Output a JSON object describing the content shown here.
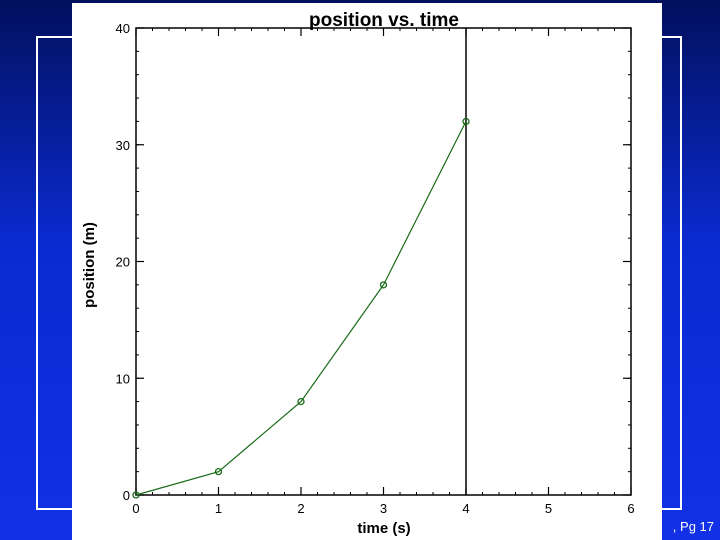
{
  "slide": {
    "background_top": "#02105e",
    "background_bottom": "#1230e6",
    "frame_color": "#ffffff",
    "footer_text": ", Pg 17"
  },
  "chart_data": {
    "type": "line",
    "title": "position vs. time",
    "xlabel": "time (s)",
    "ylabel": "position (m)",
    "xlim": [
      0,
      6
    ],
    "ylim": [
      0,
      40
    ],
    "xticks": [
      0,
      1,
      2,
      3,
      4,
      5,
      6
    ],
    "yticks": [
      0,
      10,
      20,
      30,
      40
    ],
    "grid": false,
    "series": [
      {
        "color": "#1a6b1a",
        "marker": "circle",
        "x": [
          0,
          1,
          2,
          3,
          4
        ],
        "y": [
          0,
          2,
          8,
          18,
          32
        ]
      }
    ],
    "vertical_line": {
      "x": 4,
      "color": "#000000"
    }
  }
}
